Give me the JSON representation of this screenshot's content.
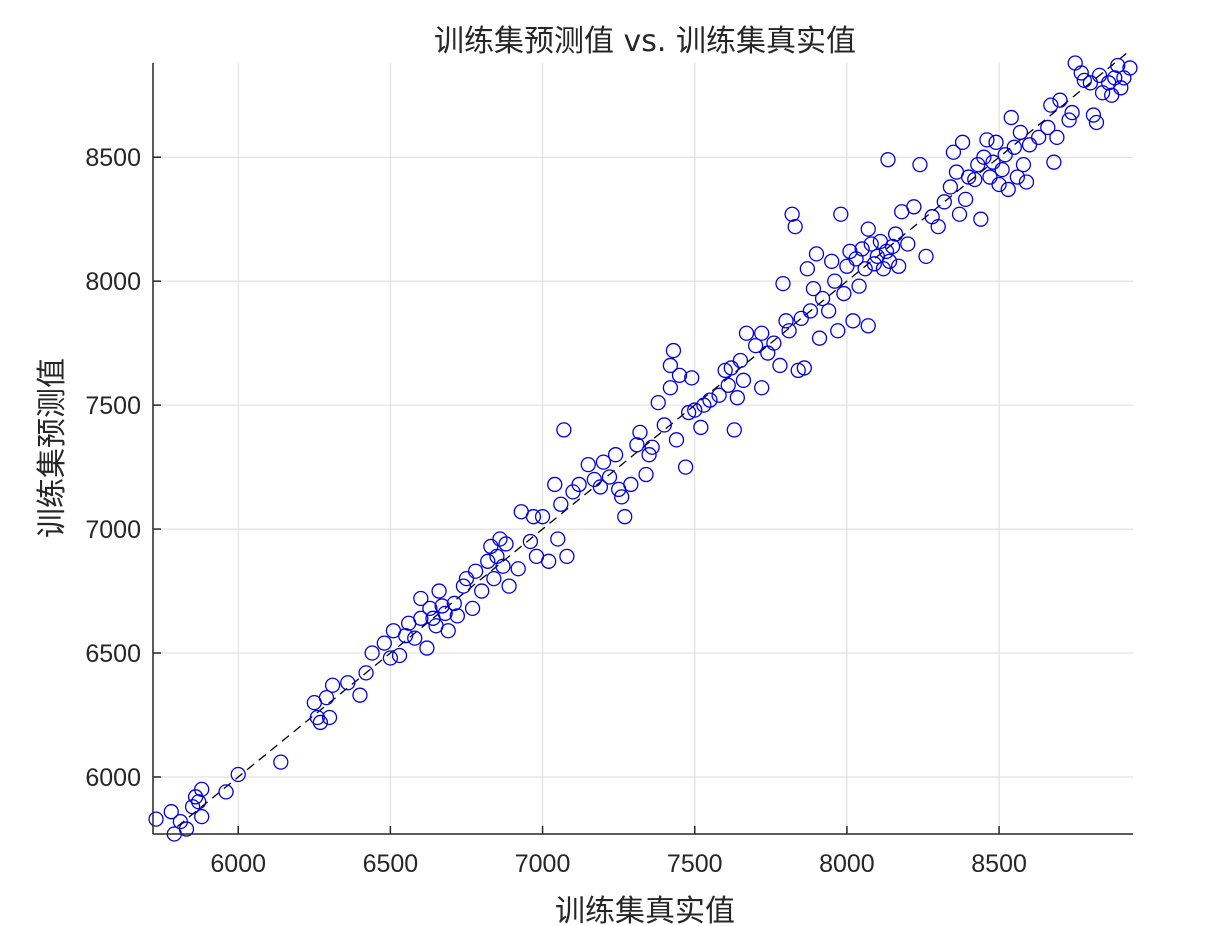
{
  "chart_data": {
    "type": "scatter",
    "title": "训练集预测值 vs. 训练集真实值",
    "xlabel": "训练集真实值",
    "ylabel": "训练集预测值",
    "xlim": [
      5720,
      8940
    ],
    "ylim": [
      5770,
      8880
    ],
    "xticks": [
      6000,
      6500,
      7000,
      7500,
      8000,
      8500
    ],
    "yticks": [
      6000,
      6500,
      7000,
      7500,
      8000,
      8500
    ],
    "grid": true,
    "marker": "circle-open",
    "marker_color": "#0000e6",
    "reference_line": {
      "style": "dashed",
      "color": "#000000",
      "from": [
        5800,
        5800
      ],
      "to": [
        8930,
        8930
      ]
    },
    "series": [
      {
        "points": [
          [
            5730,
            5830
          ],
          [
            5780,
            5860
          ],
          [
            5790,
            5770
          ],
          [
            5810,
            5820
          ],
          [
            5830,
            5790
          ],
          [
            5850,
            5880
          ],
          [
            5860,
            5920
          ],
          [
            5870,
            5900
          ],
          [
            5880,
            5840
          ],
          [
            5880,
            5950
          ],
          [
            5960,
            5940
          ],
          [
            6000,
            6010
          ],
          [
            6140,
            6060
          ],
          [
            6250,
            6300
          ],
          [
            6260,
            6240
          ],
          [
            6270,
            6220
          ],
          [
            6290,
            6320
          ],
          [
            6300,
            6240
          ],
          [
            6310,
            6370
          ],
          [
            6360,
            6380
          ],
          [
            6400,
            6330
          ],
          [
            6420,
            6420
          ],
          [
            6440,
            6500
          ],
          [
            6480,
            6540
          ],
          [
            6500,
            6480
          ],
          [
            6510,
            6590
          ],
          [
            6530,
            6490
          ],
          [
            6550,
            6570
          ],
          [
            6560,
            6620
          ],
          [
            6580,
            6560
          ],
          [
            6600,
            6640
          ],
          [
            6600,
            6720
          ],
          [
            6620,
            6520
          ],
          [
            6630,
            6680
          ],
          [
            6640,
            6640
          ],
          [
            6650,
            6610
          ],
          [
            6660,
            6750
          ],
          [
            6670,
            6690
          ],
          [
            6680,
            6660
          ],
          [
            6690,
            6590
          ],
          [
            6710,
            6700
          ],
          [
            6720,
            6650
          ],
          [
            6740,
            6770
          ],
          [
            6750,
            6800
          ],
          [
            6770,
            6680
          ],
          [
            6780,
            6830
          ],
          [
            6800,
            6750
          ],
          [
            6820,
            6870
          ],
          [
            6830,
            6930
          ],
          [
            6840,
            6800
          ],
          [
            6850,
            6890
          ],
          [
            6860,
            6960
          ],
          [
            6870,
            6850
          ],
          [
            6880,
            6940
          ],
          [
            6890,
            6770
          ],
          [
            6920,
            6840
          ],
          [
            6930,
            7070
          ],
          [
            6960,
            6950
          ],
          [
            6970,
            7050
          ],
          [
            6980,
            6890
          ],
          [
            7000,
            7050
          ],
          [
            7020,
            6870
          ],
          [
            7040,
            7180
          ],
          [
            7050,
            6960
          ],
          [
            7060,
            7100
          ],
          [
            7070,
            7400
          ],
          [
            7080,
            6890
          ],
          [
            7100,
            7150
          ],
          [
            7120,
            7180
          ],
          [
            7150,
            7260
          ],
          [
            7170,
            7200
          ],
          [
            7190,
            7170
          ],
          [
            7200,
            7270
          ],
          [
            7220,
            7210
          ],
          [
            7240,
            7300
          ],
          [
            7250,
            7160
          ],
          [
            7260,
            7130
          ],
          [
            7270,
            7050
          ],
          [
            7290,
            7180
          ],
          [
            7310,
            7340
          ],
          [
            7320,
            7390
          ],
          [
            7340,
            7220
          ],
          [
            7350,
            7300
          ],
          [
            7360,
            7330
          ],
          [
            7380,
            7510
          ],
          [
            7400,
            7420
          ],
          [
            7420,
            7570
          ],
          [
            7420,
            7660
          ],
          [
            7430,
            7720
          ],
          [
            7440,
            7360
          ],
          [
            7450,
            7620
          ],
          [
            7470,
            7250
          ],
          [
            7480,
            7470
          ],
          [
            7490,
            7610
          ],
          [
            7500,
            7480
          ],
          [
            7520,
            7410
          ],
          [
            7530,
            7500
          ],
          [
            7550,
            7520
          ],
          [
            7580,
            7540
          ],
          [
            7600,
            7640
          ],
          [
            7610,
            7580
          ],
          [
            7620,
            7650
          ],
          [
            7630,
            7400
          ],
          [
            7640,
            7530
          ],
          [
            7650,
            7680
          ],
          [
            7660,
            7600
          ],
          [
            7670,
            7790
          ],
          [
            7700,
            7740
          ],
          [
            7720,
            7790
          ],
          [
            7720,
            7570
          ],
          [
            7740,
            7710
          ],
          [
            7760,
            7750
          ],
          [
            7780,
            7660
          ],
          [
            7790,
            7990
          ],
          [
            7800,
            7840
          ],
          [
            7810,
            7800
          ],
          [
            7820,
            8270
          ],
          [
            7830,
            8220
          ],
          [
            7840,
            7640
          ],
          [
            7850,
            7850
          ],
          [
            7860,
            7650
          ],
          [
            7870,
            8050
          ],
          [
            7880,
            7880
          ],
          [
            7890,
            7970
          ],
          [
            7900,
            8110
          ],
          [
            7910,
            7770
          ],
          [
            7920,
            7930
          ],
          [
            7940,
            7880
          ],
          [
            7950,
            8080
          ],
          [
            7960,
            8000
          ],
          [
            7970,
            7800
          ],
          [
            7980,
            8270
          ],
          [
            7990,
            7950
          ],
          [
            8000,
            8060
          ],
          [
            8010,
            8120
          ],
          [
            8020,
            7840
          ],
          [
            8030,
            8090
          ],
          [
            8040,
            7980
          ],
          [
            8050,
            8130
          ],
          [
            8060,
            8050
          ],
          [
            8070,
            8210
          ],
          [
            8070,
            7820
          ],
          [
            8080,
            8150
          ],
          [
            8090,
            8070
          ],
          [
            8100,
            8100
          ],
          [
            8110,
            8160
          ],
          [
            8120,
            8050
          ],
          [
            8130,
            8120
          ],
          [
            8135,
            8490
          ],
          [
            8140,
            8080
          ],
          [
            8150,
            8140
          ],
          [
            8160,
            8190
          ],
          [
            8170,
            8060
          ],
          [
            8180,
            8280
          ],
          [
            8200,
            8150
          ],
          [
            8220,
            8300
          ],
          [
            8240,
            8470
          ],
          [
            8260,
            8100
          ],
          [
            8280,
            8260
          ],
          [
            8300,
            8220
          ],
          [
            8320,
            8320
          ],
          [
            8340,
            8380
          ],
          [
            8350,
            8520
          ],
          [
            8360,
            8440
          ],
          [
            8370,
            8270
          ],
          [
            8380,
            8560
          ],
          [
            8390,
            8330
          ],
          [
            8400,
            8420
          ],
          [
            8420,
            8410
          ],
          [
            8430,
            8470
          ],
          [
            8440,
            8250
          ],
          [
            8450,
            8500
          ],
          [
            8460,
            8570
          ],
          [
            8470,
            8420
          ],
          [
            8480,
            8480
          ],
          [
            8490,
            8560
          ],
          [
            8500,
            8390
          ],
          [
            8510,
            8450
          ],
          [
            8520,
            8510
          ],
          [
            8530,
            8370
          ],
          [
            8540,
            8660
          ],
          [
            8550,
            8540
          ],
          [
            8560,
            8420
          ],
          [
            8570,
            8600
          ],
          [
            8580,
            8470
          ],
          [
            8590,
            8400
          ],
          [
            8600,
            8550
          ],
          [
            8630,
            8580
          ],
          [
            8660,
            8620
          ],
          [
            8670,
            8710
          ],
          [
            8680,
            8480
          ],
          [
            8690,
            8580
          ],
          [
            8700,
            8730
          ],
          [
            8730,
            8650
          ],
          [
            8740,
            8680
          ],
          [
            8750,
            8880
          ],
          [
            8770,
            8840
          ],
          [
            8780,
            8810
          ],
          [
            8800,
            8800
          ],
          [
            8810,
            8670
          ],
          [
            8820,
            8640
          ],
          [
            8830,
            8830
          ],
          [
            8840,
            8760
          ],
          [
            8860,
            8800
          ],
          [
            8870,
            8750
          ],
          [
            8880,
            8820
          ],
          [
            8890,
            8870
          ],
          [
            8900,
            8780
          ],
          [
            8910,
            8820
          ],
          [
            8930,
            8860
          ]
        ]
      }
    ]
  }
}
